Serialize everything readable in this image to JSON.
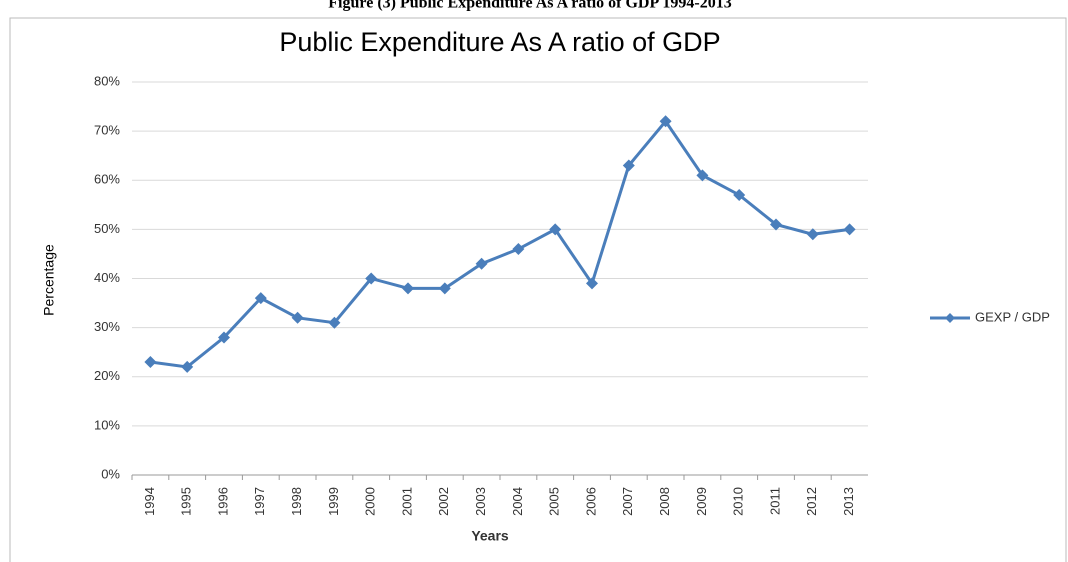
{
  "caption": "Figure (3) Public Expenditure As A ratio of GDP 1994-2013",
  "chart_data": {
    "type": "line",
    "title": "Public Expenditure As A ratio of GDP",
    "x_label": "Years",
    "y_label": "Percentage",
    "categories": [
      "1994",
      "1995",
      "1996",
      "1997",
      "1998",
      "1999",
      "2000",
      "2001",
      "2002",
      "2003",
      "2004",
      "2005",
      "2006",
      "2007",
      "2008",
      "2009",
      "2010",
      "2011",
      "2012",
      "2013"
    ],
    "series": [
      {
        "name": "GEXP / GDP",
        "color": "#4a7ebb",
        "values": [
          23,
          22,
          28,
          36,
          32,
          31,
          40,
          38,
          38,
          43,
          46,
          50,
          39,
          63,
          72,
          61,
          57,
          51,
          49,
          50
        ]
      }
    ],
    "ylim": [
      0,
      80
    ],
    "yticks": [
      {
        "value": 0,
        "label": "0%"
      },
      {
        "value": 10,
        "label": "10%"
      },
      {
        "value": 20,
        "label": "20%"
      },
      {
        "value": 30,
        "label": "30%"
      },
      {
        "value": 40,
        "label": "40%"
      },
      {
        "value": 50,
        "label": "50%"
      },
      {
        "value": 60,
        "label": "60%"
      },
      {
        "value": 70,
        "label": "70%"
      },
      {
        "value": 80,
        "label": "80%"
      }
    ],
    "grid": true,
    "legend": "right"
  }
}
